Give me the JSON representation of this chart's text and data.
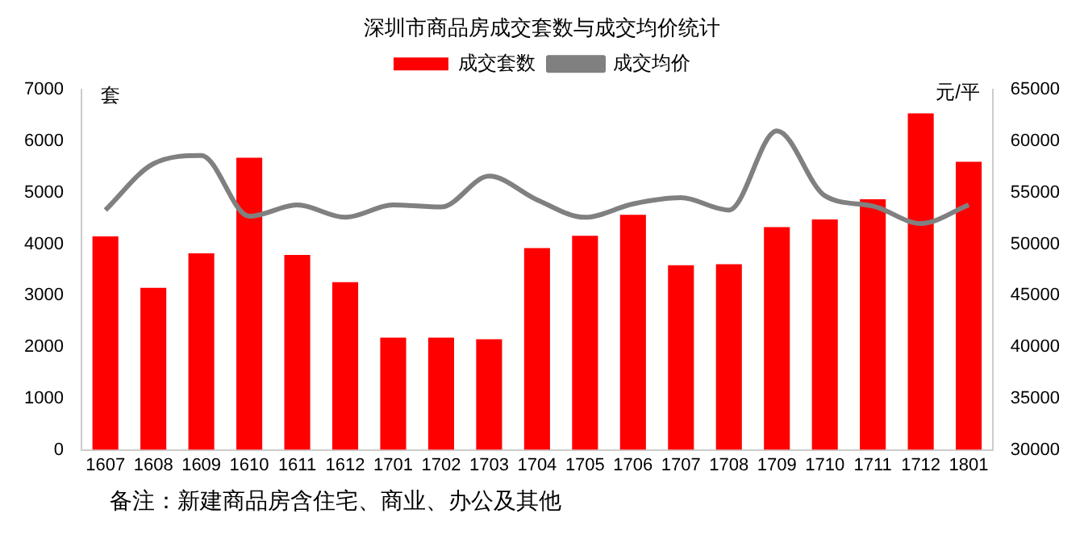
{
  "chart_data": {
    "type": "bar",
    "title": "深圳市商品房成交套数与成交均价统计",
    "ylabel": "套",
    "y2label": "元/平",
    "categories": [
      "1607",
      "1608",
      "1609",
      "1610",
      "1611",
      "1612",
      "1701",
      "1702",
      "1703",
      "1704",
      "1705",
      "1706",
      "1707",
      "1708",
      "1709",
      "1710",
      "1711",
      "1712",
      "1801"
    ],
    "series": [
      {
        "name": "成交套数",
        "type": "bar",
        "color": "#ff0000",
        "values": [
          4150,
          3150,
          3820,
          5680,
          3790,
          3260,
          2180,
          2180,
          2150,
          3920,
          4160,
          4570,
          3590,
          3610,
          4330,
          4480,
          4870,
          6540,
          5600
        ]
      },
      {
        "name": "成交均价",
        "type": "line",
        "axis": "y2",
        "color": "#808080",
        "values": [
          53300,
          57800,
          58600,
          52700,
          53800,
          52600,
          53800,
          53600,
          56600,
          54300,
          52600,
          53900,
          54500,
          53300,
          61000,
          54700,
          53700,
          52000,
          53800
        ]
      }
    ],
    "ylim": [
      0,
      7000
    ],
    "yticks": [
      0,
      1000,
      2000,
      3000,
      4000,
      5000,
      6000,
      7000
    ],
    "y2lim": [
      30000,
      65000
    ],
    "y2ticks": [
      30000,
      35000,
      40000,
      45000,
      50000,
      55000,
      60000,
      65000
    ],
    "grid": false,
    "legend": "top",
    "marker": "none",
    "line_style": "solid",
    "annotations": [
      "备注：新建商品房含住宅、商业、办公及其他"
    ]
  }
}
